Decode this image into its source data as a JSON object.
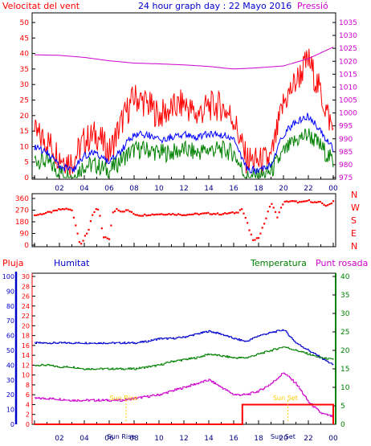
{
  "title": "24 hour graph day : 22 Mayo 2016",
  "colors": {
    "wind": "#ff0000",
    "gust": "#ff0000",
    "avg": "#0000ff",
    "lull": "#008000",
    "pressure": "#cc00cc",
    "rain": "#ff0000",
    "humidity": "#0000cc",
    "temperature": "#008000",
    "dewpoint": "#cc00cc",
    "sun": "#ffcc00"
  },
  "x_ticks": [
    "02",
    "04",
    "06",
    "08",
    "10",
    "12",
    "14",
    "16",
    "18",
    "20",
    "22",
    "00"
  ],
  "chart_data": [
    {
      "type": "line",
      "labels": {
        "left": "Velocitat del vent",
        "right": "Pressió"
      },
      "y_left": {
        "range": [
          0,
          50
        ],
        "ticks": [
          "0",
          "5",
          "10",
          "15",
          "20",
          "25",
          "30",
          "35",
          "40",
          "45",
          "50"
        ]
      },
      "y_right": {
        "range": [
          975,
          1035
        ],
        "ticks": [
          "975",
          "980",
          "985",
          "990",
          "995",
          "1000",
          "1005",
          "1010",
          "1015",
          "1020",
          "1025",
          "1030",
          "1035"
        ]
      },
      "series": [
        {
          "key": "gust",
          "x": [
            0,
            1,
            2,
            3,
            4,
            5,
            6,
            7,
            8,
            9,
            10,
            11,
            12,
            13,
            14,
            15,
            16,
            17,
            18,
            19,
            20,
            21,
            22,
            23,
            24
          ],
          "y": [
            14,
            12,
            7,
            5,
            12,
            14,
            8,
            18,
            26,
            24,
            20,
            22,
            24,
            20,
            23,
            23,
            19,
            6,
            5,
            6,
            24,
            31,
            38,
            27,
            15
          ]
        },
        {
          "key": "avg",
          "x": [
            0,
            1,
            2,
            3,
            4,
            5,
            6,
            7,
            8,
            9,
            10,
            11,
            12,
            13,
            14,
            15,
            16,
            17,
            18,
            19,
            20,
            21,
            22,
            23,
            24
          ],
          "y": [
            10,
            8,
            4,
            2,
            7,
            8,
            5,
            9,
            14,
            14,
            12,
            13,
            14,
            13,
            14,
            14,
            12,
            3,
            2,
            4,
            14,
            18,
            20,
            15,
            9
          ]
        },
        {
          "key": "lull",
          "x": [
            0,
            1,
            2,
            3,
            4,
            5,
            6,
            7,
            8,
            9,
            10,
            11,
            12,
            13,
            14,
            15,
            16,
            17,
            18,
            19,
            20,
            21,
            22,
            23,
            24
          ],
          "y": [
            6,
            5,
            2,
            0,
            4,
            4,
            2,
            6,
            9,
            9,
            8,
            8,
            9,
            8,
            9,
            9,
            8,
            0,
            0,
            2,
            8,
            12,
            14,
            10,
            5
          ]
        },
        {
          "key": "pressure",
          "axis": "right",
          "x": [
            0,
            2,
            4,
            6,
            8,
            10,
            12,
            14,
            16,
            18,
            20,
            22,
            24
          ],
          "y": [
            1022.5,
            1022.3,
            1021.5,
            1020.2,
            1019.3,
            1019.0,
            1018.6,
            1018.0,
            1017.0,
            1017.5,
            1018.2,
            1021.0,
            1025.5
          ]
        }
      ]
    },
    {
      "type": "scatter",
      "y_range": [
        0,
        360
      ],
      "y_ticks": [
        "0",
        "90",
        "180",
        "270",
        "360"
      ],
      "compass": [
        "N",
        "W",
        "S",
        "E",
        "N"
      ],
      "series": [
        {
          "key": "direction",
          "x": [
            0,
            0.5,
            1,
            1.5,
            2,
            2.5,
            3,
            3.2,
            3.4,
            3.6,
            3.8,
            4,
            4.3,
            4.6,
            5,
            5.2,
            5.5,
            6,
            6.3,
            6.6,
            7,
            7.5,
            8,
            8.5,
            9,
            10,
            11,
            12,
            13,
            14,
            15,
            16,
            16.3,
            16.6,
            17,
            17.3,
            17.6,
            18,
            18.5,
            19,
            19.5,
            20,
            20.5,
            21,
            21.5,
            22,
            22.5,
            23,
            23.5,
            24
          ],
          "y": [
            230,
            240,
            250,
            260,
            275,
            280,
            270,
            200,
            110,
            30,
            10,
            60,
            100,
            230,
            280,
            260,
            60,
            50,
            250,
            280,
            260,
            270,
            240,
            230,
            235,
            240,
            240,
            235,
            240,
            245,
            240,
            250,
            250,
            290,
            200,
            100,
            30,
            60,
            180,
            330,
            220,
            330,
            340,
            335,
            330,
            345,
            330,
            330,
            300,
            340
          ]
        }
      ]
    },
    {
      "type": "line",
      "labels": {
        "rain": "Pluja",
        "humidity": "Humitat",
        "temperature": "Temperatura",
        "dewpoint": "Punt rosada"
      },
      "y_humidity": {
        "range": [
          0,
          100
        ],
        "ticks": [
          "0",
          "10",
          "20",
          "30",
          "40",
          "50",
          "60",
          "70",
          "80",
          "90",
          "100"
        ]
      },
      "y_rain": {
        "range": [
          0,
          30
        ],
        "ticks": [
          "0",
          "2",
          "4",
          "6",
          "8",
          "10",
          "12",
          "14",
          "16",
          "18",
          "20",
          "22",
          "24",
          "26",
          "28",
          "30"
        ]
      },
      "y_temp": {
        "range": [
          0,
          40
        ],
        "ticks": [
          "0",
          "5",
          "10",
          "15",
          "20",
          "25",
          "30",
          "35",
          "40"
        ]
      },
      "sun": {
        "rise": "Sun Rise",
        "set": "Sun Set",
        "rise_x": 7.35,
        "set_x": 20.35
      },
      "series": [
        {
          "key": "humidity",
          "x": [
            0,
            1,
            2,
            3,
            4,
            5,
            6,
            7,
            8,
            9,
            10,
            11,
            12,
            13,
            14,
            15,
            16,
            17,
            18,
            19,
            20,
            21,
            22,
            23,
            24
          ],
          "y": [
            55,
            55,
            55,
            55,
            55,
            55,
            55,
            55,
            55,
            56,
            58,
            58,
            59,
            61,
            63,
            61,
            58,
            56,
            60,
            62,
            64,
            55,
            50,
            45,
            40
          ]
        },
        {
          "key": "rain",
          "x": [
            0,
            16.7,
            16.7,
            24,
            24
          ],
          "y": [
            0,
            0,
            4,
            4,
            0
          ]
        },
        {
          "key": "temperature",
          "x": [
            0,
            1,
            2,
            3,
            4,
            5,
            6,
            7,
            8,
            9,
            10,
            11,
            12,
            13,
            14,
            15,
            16,
            17,
            18,
            19,
            20,
            21,
            22,
            23,
            24
          ],
          "y": [
            16,
            16,
            15.5,
            15.5,
            15,
            15,
            15,
            15,
            15,
            15.5,
            16,
            17,
            17.5,
            18,
            19,
            18.5,
            18,
            18,
            19,
            20,
            21,
            20,
            19,
            18,
            17.5
          ]
        },
        {
          "key": "dewpoint",
          "x": [
            0,
            1,
            2,
            3,
            4,
            5,
            6,
            7,
            8,
            9,
            10,
            11,
            12,
            13,
            14,
            15,
            16,
            17,
            18,
            19,
            20,
            21,
            22,
            23,
            24
          ],
          "y": [
            7,
            7,
            6.8,
            6.5,
            6.5,
            6.5,
            6.5,
            6.5,
            7,
            7.5,
            8,
            9,
            10,
            11,
            12,
            10,
            8,
            8,
            9,
            11,
            14,
            11,
            6,
            3,
            2
          ]
        }
      ]
    }
  ]
}
